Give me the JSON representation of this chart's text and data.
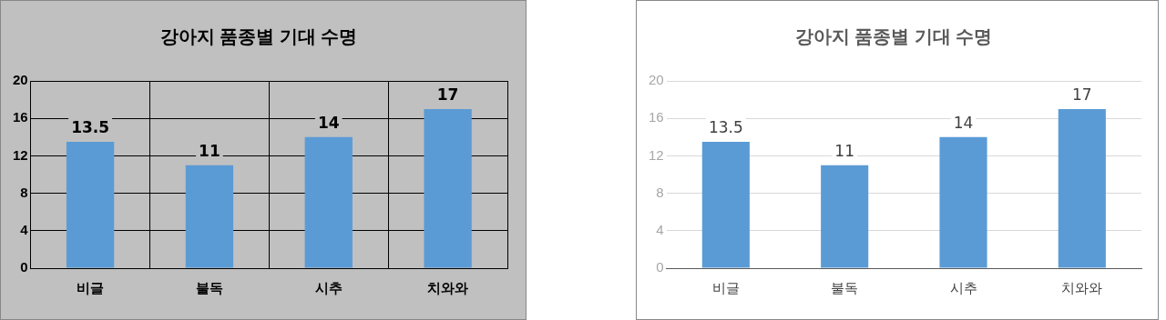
{
  "chart_data": [
    {
      "type": "bar",
      "title": "강아지 품종별 기대 수명",
      "categories": [
        "비글",
        "불독",
        "시추",
        "치와와"
      ],
      "values": [
        13.5,
        11,
        14,
        17
      ],
      "color": "#5b9bd5",
      "ylim": [
        0,
        20
      ],
      "yticks": [
        0,
        4,
        8,
        12,
        16,
        20
      ],
      "grid": true,
      "data_labels": true
    },
    {
      "type": "bar",
      "title": "강아지 품종별 기대 수명",
      "categories": [
        "비글",
        "불독",
        "시추",
        "치와와"
      ],
      "values": [
        13.5,
        11,
        14,
        17
      ],
      "color": "#5b9bd5",
      "ylim": [
        0,
        20
      ],
      "yticks": [
        0,
        4,
        8,
        12,
        16,
        20
      ],
      "grid": "y",
      "data_labels": true
    }
  ]
}
